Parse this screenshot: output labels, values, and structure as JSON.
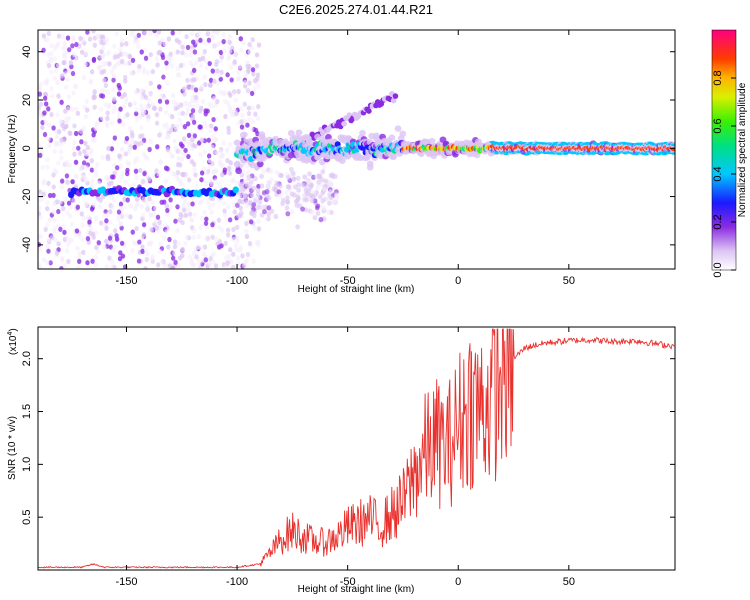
{
  "title": "C2E6.2025.274.01.44.R21",
  "chart_data": [
    {
      "type": "heatmap",
      "name": "spectrogram",
      "xlabel": "Height of straight line (km)",
      "ylabel": "Frequency (Hz)",
      "xlim": [
        -190,
        98
      ],
      "ylim": [
        -50,
        49
      ],
      "xticks": [
        -150,
        -100,
        -50,
        0,
        50
      ],
      "yticks": [
        -40,
        -20,
        0,
        20,
        40
      ],
      "colorbar": {
        "label": "Normalized spectral amplitude",
        "range": [
          0,
          1
        ],
        "ticks": [
          "0.0",
          "0.2",
          "0.4",
          "0.6",
          "0.8"
        ],
        "tick_values": [
          0.0,
          0.2,
          0.4,
          0.6,
          0.8
        ]
      },
      "features": [
        {
          "name": "low-frequency band",
          "x_range": [
            -175,
            -100
          ],
          "frequency": -18,
          "amplitude": 0.35
        },
        {
          "name": "main carrier band",
          "x_range": [
            -100,
            98
          ],
          "frequency": 0,
          "amplitude_peak": 1.0
        },
        {
          "name": "rising branch",
          "x_range": [
            -70,
            -28
          ],
          "frequency_range": [
            3,
            22
          ],
          "amplitude": 0.2
        }
      ]
    },
    {
      "type": "line",
      "name": "snr",
      "xlabel": "Height of straight line (km)",
      "ylabel": "SNR (10 * v/v)",
      "exponent_label": "(x10",
      "exponent": "4",
      "xlim": [
        -190,
        98
      ],
      "ylim": [
        0,
        2.3
      ],
      "xticks": [
        -150,
        -100,
        -50,
        0,
        50
      ],
      "yticks": [
        0.5,
        1.0,
        1.5,
        2.0
      ],
      "ytick_labels": [
        "0.5",
        "1.0",
        "1.5",
        "2.0"
      ],
      "color": "#e8302c",
      "series": [
        {
          "name": "SNR",
          "x": [
            -190,
            -170,
            -165,
            -160,
            -100,
            -90,
            -85,
            -80,
            -75,
            -70,
            -65,
            -60,
            -55,
            -50,
            -45,
            -40,
            -35,
            -30,
            -25,
            -20,
            -15,
            -10,
            -5,
            0,
            5,
            10,
            15,
            20,
            25,
            30,
            35,
            40,
            50,
            60,
            70,
            80,
            90,
            98
          ],
          "y": [
            0.02,
            0.02,
            0.05,
            0.02,
            0.02,
            0.05,
            0.15,
            0.28,
            0.35,
            0.3,
            0.25,
            0.25,
            0.3,
            0.38,
            0.42,
            0.45,
            0.4,
            0.5,
            0.6,
            0.85,
            1.05,
            1.15,
            1.1,
            1.3,
            1.5,
            1.45,
            1.55,
            1.8,
            2.0,
            2.1,
            2.13,
            2.15,
            2.17,
            2.18,
            2.16,
            2.17,
            2.14,
            2.12
          ]
        }
      ]
    }
  ]
}
